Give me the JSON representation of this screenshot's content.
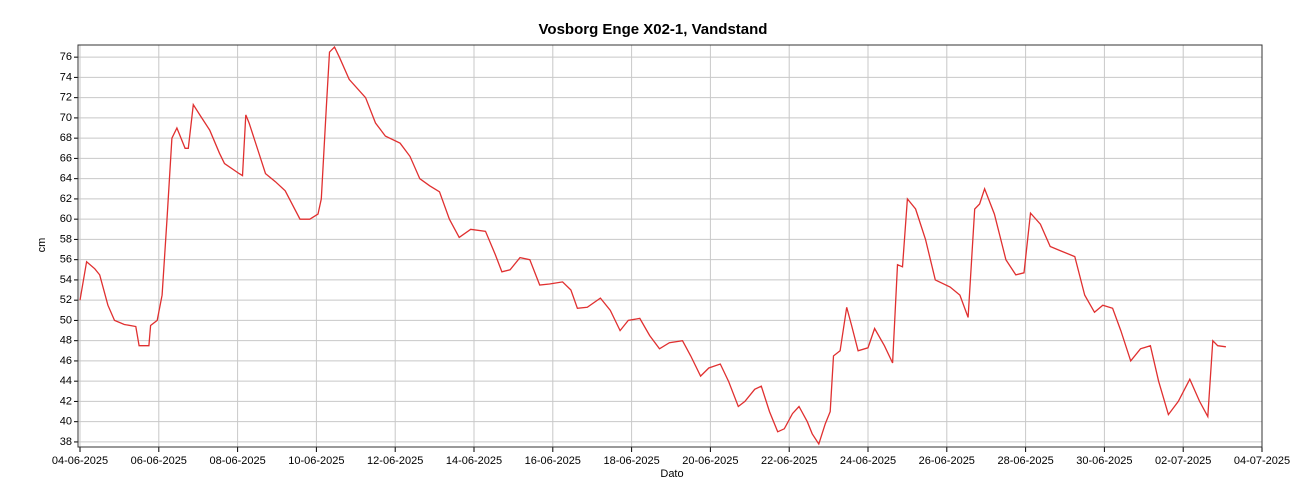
{
  "chart_data": {
    "type": "line",
    "title": "Vosborg Enge X02-1, Vandstand",
    "xlabel": "Dato",
    "ylabel": "cm",
    "grid": true,
    "xlim": [
      "2025-06-04T00:00",
      "2025-07-04T00:00"
    ],
    "xticks": [
      {
        "value": "2025-06-04T00:00",
        "label": "04-06-2025"
      },
      {
        "value": "2025-06-06T00:00",
        "label": "06-06-2025"
      },
      {
        "value": "2025-06-08T00:00",
        "label": "08-06-2025"
      },
      {
        "value": "2025-06-10T00:00",
        "label": "10-06-2025"
      },
      {
        "value": "2025-06-12T00:00",
        "label": "12-06-2025"
      },
      {
        "value": "2025-06-14T00:00",
        "label": "14-06-2025"
      },
      {
        "value": "2025-06-16T00:00",
        "label": "16-06-2025"
      },
      {
        "value": "2025-06-18T00:00",
        "label": "18-06-2025"
      },
      {
        "value": "2025-06-20T00:00",
        "label": "20-06-2025"
      },
      {
        "value": "2025-06-22T00:00",
        "label": "22-06-2025"
      },
      {
        "value": "2025-06-24T00:00",
        "label": "24-06-2025"
      },
      {
        "value": "2025-06-26T00:00",
        "label": "26-06-2025"
      },
      {
        "value": "2025-06-28T00:00",
        "label": "28-06-2025"
      },
      {
        "value": "2025-06-30T00:00",
        "label": "30-06-2025"
      },
      {
        "value": "2025-07-02T00:00",
        "label": "02-07-2025"
      },
      {
        "value": "2025-07-04T00:00",
        "label": "04-07-2025"
      }
    ],
    "ylim": [
      37.5,
      77.2
    ],
    "yticks": [
      38,
      40,
      42,
      44,
      46,
      48,
      50,
      52,
      54,
      56,
      58,
      60,
      62,
      64,
      66,
      68,
      70,
      72,
      74,
      76
    ],
    "x": [
      "2025-06-04T00:00",
      "2025-06-04T04:00",
      "2025-06-04T09:00",
      "2025-06-04T12:00",
      "2025-06-04T17:00",
      "2025-06-04T21:00",
      "2025-06-05T03:00",
      "2025-06-05T10:00",
      "2025-06-05T12:00",
      "2025-06-05T18:00",
      "2025-06-05T19:00",
      "2025-06-05T23:00",
      "2025-06-06T02:00",
      "2025-06-06T05:00",
      "2025-06-06T08:00",
      "2025-06-06T11:00",
      "2025-06-06T16:00",
      "2025-06-06T18:00",
      "2025-06-06T21:00",
      "2025-06-07T01:00",
      "2025-06-07T07:00",
      "2025-06-07T13:00",
      "2025-06-07T16:00",
      "2025-06-08T01:00",
      "2025-06-08T03:00",
      "2025-06-08T05:00",
      "2025-06-08T07:00",
      "2025-06-08T14:00",
      "2025-06-08T17:00",
      "2025-06-08T23:00",
      "2025-06-09T05:00",
      "2025-06-09T14:00",
      "2025-06-09T20:00",
      "2025-06-10T01:00",
      "2025-06-10T03:00",
      "2025-06-10T06:00",
      "2025-06-10T08:00",
      "2025-06-10T11:00",
      "2025-06-10T14:00",
      "2025-06-10T20:00",
      "2025-06-11T06:00",
      "2025-06-11T12:00",
      "2025-06-11T18:00",
      "2025-06-12T03:00",
      "2025-06-12T09:00",
      "2025-06-12T15:00",
      "2025-06-12T21:00",
      "2025-06-13T03:00",
      "2025-06-13T09:00",
      "2025-06-13T15:00",
      "2025-06-13T22:00",
      "2025-06-14T07:00",
      "2025-06-14T13:00",
      "2025-06-14T17:00",
      "2025-06-14T22:00",
      "2025-06-15T04:00",
      "2025-06-15T10:00",
      "2025-06-15T16:00",
      "2025-06-15T22:00",
      "2025-06-16T06:00",
      "2025-06-16T11:00",
      "2025-06-16T15:00",
      "2025-06-16T21:00",
      "2025-06-17T05:00",
      "2025-06-17T11:00",
      "2025-06-17T17:00",
      "2025-06-17T22:00",
      "2025-06-18T05:00",
      "2025-06-18T11:00",
      "2025-06-18T17:00",
      "2025-06-18T23:00",
      "2025-06-19T07:00",
      "2025-06-19T12:00",
      "2025-06-19T18:00",
      "2025-06-19T23:00",
      "2025-06-20T06:00",
      "2025-06-20T11:00",
      "2025-06-20T17:00",
      "2025-06-20T21:00",
      "2025-06-21T03:00",
      "2025-06-21T07:00",
      "2025-06-21T12:00",
      "2025-06-21T17:00",
      "2025-06-21T21:00",
      "2025-06-22T02:00",
      "2025-06-22T06:00",
      "2025-06-22T11:00",
      "2025-06-22T14:00",
      "2025-06-22T18:00",
      "2025-06-22T22:00",
      "2025-06-23T01:00",
      "2025-06-23T03:00",
      "2025-06-23T07:00",
      "2025-06-23T11:00",
      "2025-06-23T14:00",
      "2025-06-23T18:00",
      "2025-06-24T00:00",
      "2025-06-24T04:00",
      "2025-06-24T10:00",
      "2025-06-24T15:00",
      "2025-06-24T18:00",
      "2025-06-24T21:00",
      "2025-06-25T00:00",
      "2025-06-25T05:00",
      "2025-06-25T11:00",
      "2025-06-25T17:00",
      "2025-06-26T02:00",
      "2025-06-26T08:00",
      "2025-06-26T13:00",
      "2025-06-26T17:00",
      "2025-06-26T20:00",
      "2025-06-26T23:00",
      "2025-06-27T05:00",
      "2025-06-27T12:00",
      "2025-06-27T18:00",
      "2025-06-27T23:00",
      "2025-06-28T03:00",
      "2025-06-28T09:00",
      "2025-06-28T15:00",
      "2025-06-28T21:00",
      "2025-06-29T06:00",
      "2025-06-29T12:00",
      "2025-06-29T18:00",
      "2025-06-29T23:00",
      "2025-06-30T05:00",
      "2025-06-30T10:00",
      "2025-06-30T16:00",
      "2025-06-30T22:00",
      "2025-07-01T04:00",
      "2025-07-01T09:00",
      "2025-07-01T15:00",
      "2025-07-01T21:00",
      "2025-07-02T04:00",
      "2025-07-02T10:00",
      "2025-07-02T15:00",
      "2025-07-02T18:00",
      "2025-07-02T21:00",
      "2025-07-03T02:00"
    ],
    "series": [
      {
        "color": "#e03030",
        "values": [
          52,
          55.8,
          55.1,
          54.5,
          51.5,
          50,
          49.6,
          49.4,
          47.5,
          47.5,
          49.5,
          50,
          52.5,
          60,
          68,
          69,
          67,
          67,
          71.3,
          70.3,
          68.8,
          66.5,
          65.5,
          64.5,
          64.3,
          70.3,
          69.5,
          66,
          64.5,
          63.7,
          62.8,
          60,
          60,
          60.5,
          62,
          71,
          76.5,
          77,
          76,
          73.8,
          72,
          69.5,
          68.2,
          67.5,
          66.2,
          64,
          63.3,
          62.7,
          60,
          58.2,
          59,
          58.8,
          56.5,
          54.8,
          55,
          56.2,
          56,
          53.5,
          53.6,
          53.8,
          53,
          51.2,
          51.3,
          52.2,
          51,
          49,
          50,
          50.2,
          48.5,
          47.2,
          47.8,
          48,
          46.5,
          44.5,
          45.3,
          45.7,
          44,
          41.5,
          42,
          43.2,
          43.5,
          41,
          39,
          39.3,
          40.8,
          41.5,
          40,
          38.8,
          37.8,
          39.8,
          41,
          46.5,
          47,
          51.3,
          49.5,
          47,
          47.3,
          49.2,
          47.5,
          45.8,
          55.5,
          55.3,
          62,
          61,
          58,
          54,
          53.3,
          52.5,
          50.3,
          61,
          61.5,
          63,
          60.5,
          56,
          54.5,
          54.7,
          60.6,
          59.5,
          57.3,
          56.9,
          56.3,
          52.5,
          50.8,
          51.5,
          51.2,
          49,
          46,
          47.2,
          47.5,
          44,
          40.7,
          42,
          44.2,
          42,
          40.5,
          48,
          47.5,
          47.4
        ]
      }
    ]
  }
}
